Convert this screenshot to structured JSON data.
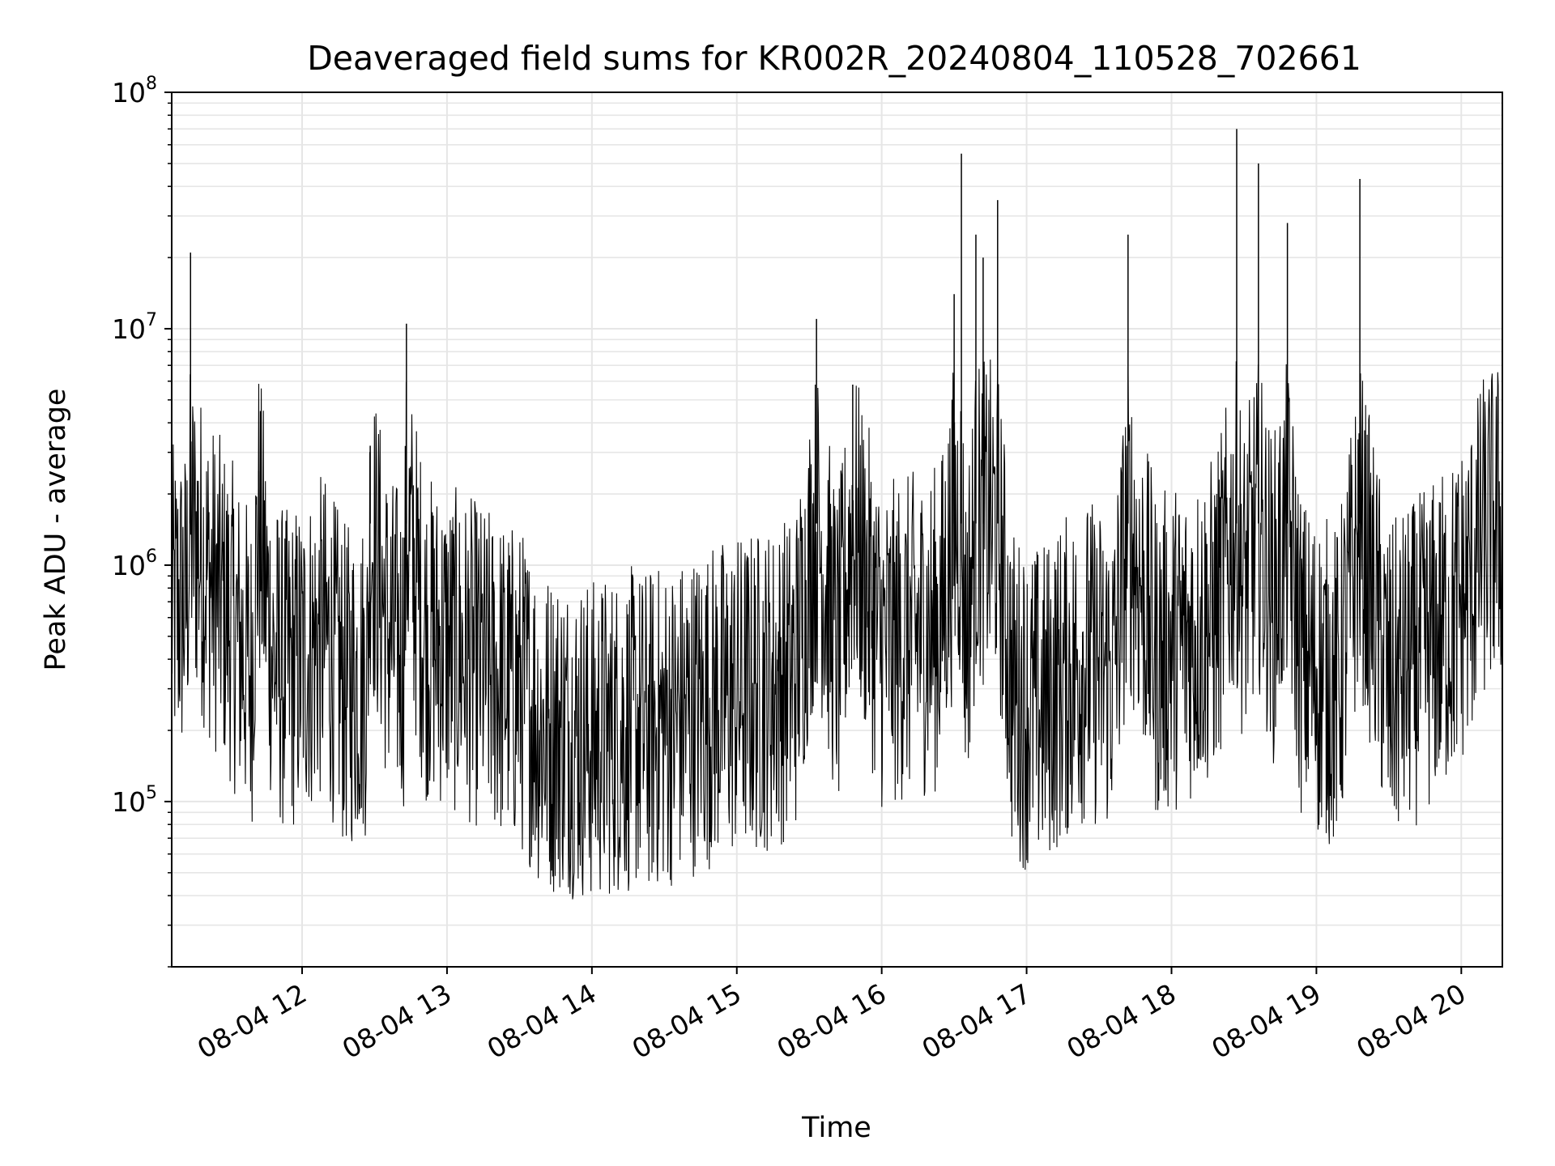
{
  "chart_data": {
    "type": "line",
    "title": "Deaveraged field sums for KR002R_20240804_110528_702661",
    "xlabel": "Time",
    "ylabel": "Peak ADU - average",
    "yscale": "log",
    "ylim": [
      20000,
      100000000
    ],
    "xlim": [
      "08-04 11:06",
      "08-04 20:17"
    ],
    "x_ticks": [
      "08-04 12",
      "08-04 13",
      "08-04 14",
      "08-04 15",
      "08-04 16",
      "08-04 17",
      "08-04 18",
      "08-04 19",
      "08-04 20"
    ],
    "x_tick_hours": [
      12,
      13,
      14,
      15,
      16,
      17,
      18,
      19,
      20
    ],
    "y_ticks": [
      {
        "base": "10",
        "exp": "5",
        "value": 100000
      },
      {
        "base": "10",
        "exp": "6",
        "value": 1000000
      },
      {
        "base": "10",
        "exp": "7",
        "value": 10000000
      },
      {
        "base": "10",
        "exp": "8",
        "value": 100000000
      }
    ],
    "grid": true,
    "line_color": "#000000",
    "grid_color": "#e6e6e6",
    "series": [
      {
        "x_hours": [
          11.1,
          11.2,
          11.23,
          11.35,
          11.5,
          11.65,
          11.7,
          11.8,
          11.9,
          12.0,
          12.15,
          12.3,
          12.45,
          12.47,
          12.6,
          12.7,
          12.72,
          12.85,
          13.0,
          13.15,
          13.3,
          13.5,
          13.6,
          13.65,
          13.8,
          14.0,
          14.2,
          14.4,
          14.6,
          14.75,
          15.0,
          15.2,
          15.4,
          15.55,
          15.7,
          15.8,
          16.0,
          16.2,
          16.4,
          16.5,
          16.55,
          16.58,
          16.65,
          16.7,
          16.8,
          16.9,
          17.0,
          17.1,
          17.2,
          17.4,
          17.6,
          17.7,
          17.9,
          18.0,
          18.15,
          18.3,
          18.45,
          18.5,
          18.6,
          18.7,
          18.8,
          18.9,
          19.0,
          19.15,
          19.3,
          19.5,
          19.7,
          19.85,
          19.95,
          20.05,
          20.15,
          20.25
        ],
        "y_base": [
          650000,
          700000,
          21000000,
          900000,
          600000,
          350000,
          2500000,
          400000,
          350000,
          400000,
          500000,
          300000,
          350000,
          3200000,
          500000,
          450000,
          10500000,
          500000,
          450000,
          400000,
          350000,
          300000,
          250000,
          200000,
          200000,
          180000,
          200000,
          200000,
          220000,
          250000,
          280000,
          300000,
          350000,
          11000000,
          400000,
          5800000,
          450000,
          500000,
          550000,
          14000000,
          55000000,
          500000,
          25000000,
          20000000,
          35000000,
          300000,
          250000,
          250000,
          300000,
          400000,
          350000,
          25000000,
          400000,
          450000,
          500000,
          600000,
          70000000,
          800000,
          50000000,
          700000,
          28000000,
          400000,
          350000,
          300000,
          43000000,
          300000,
          400000,
          500000,
          600000,
          800000,
          1300000,
          1500000
        ],
        "ymin_trace": 30000,
        "ymax_trace": 70000000
      }
    ]
  }
}
